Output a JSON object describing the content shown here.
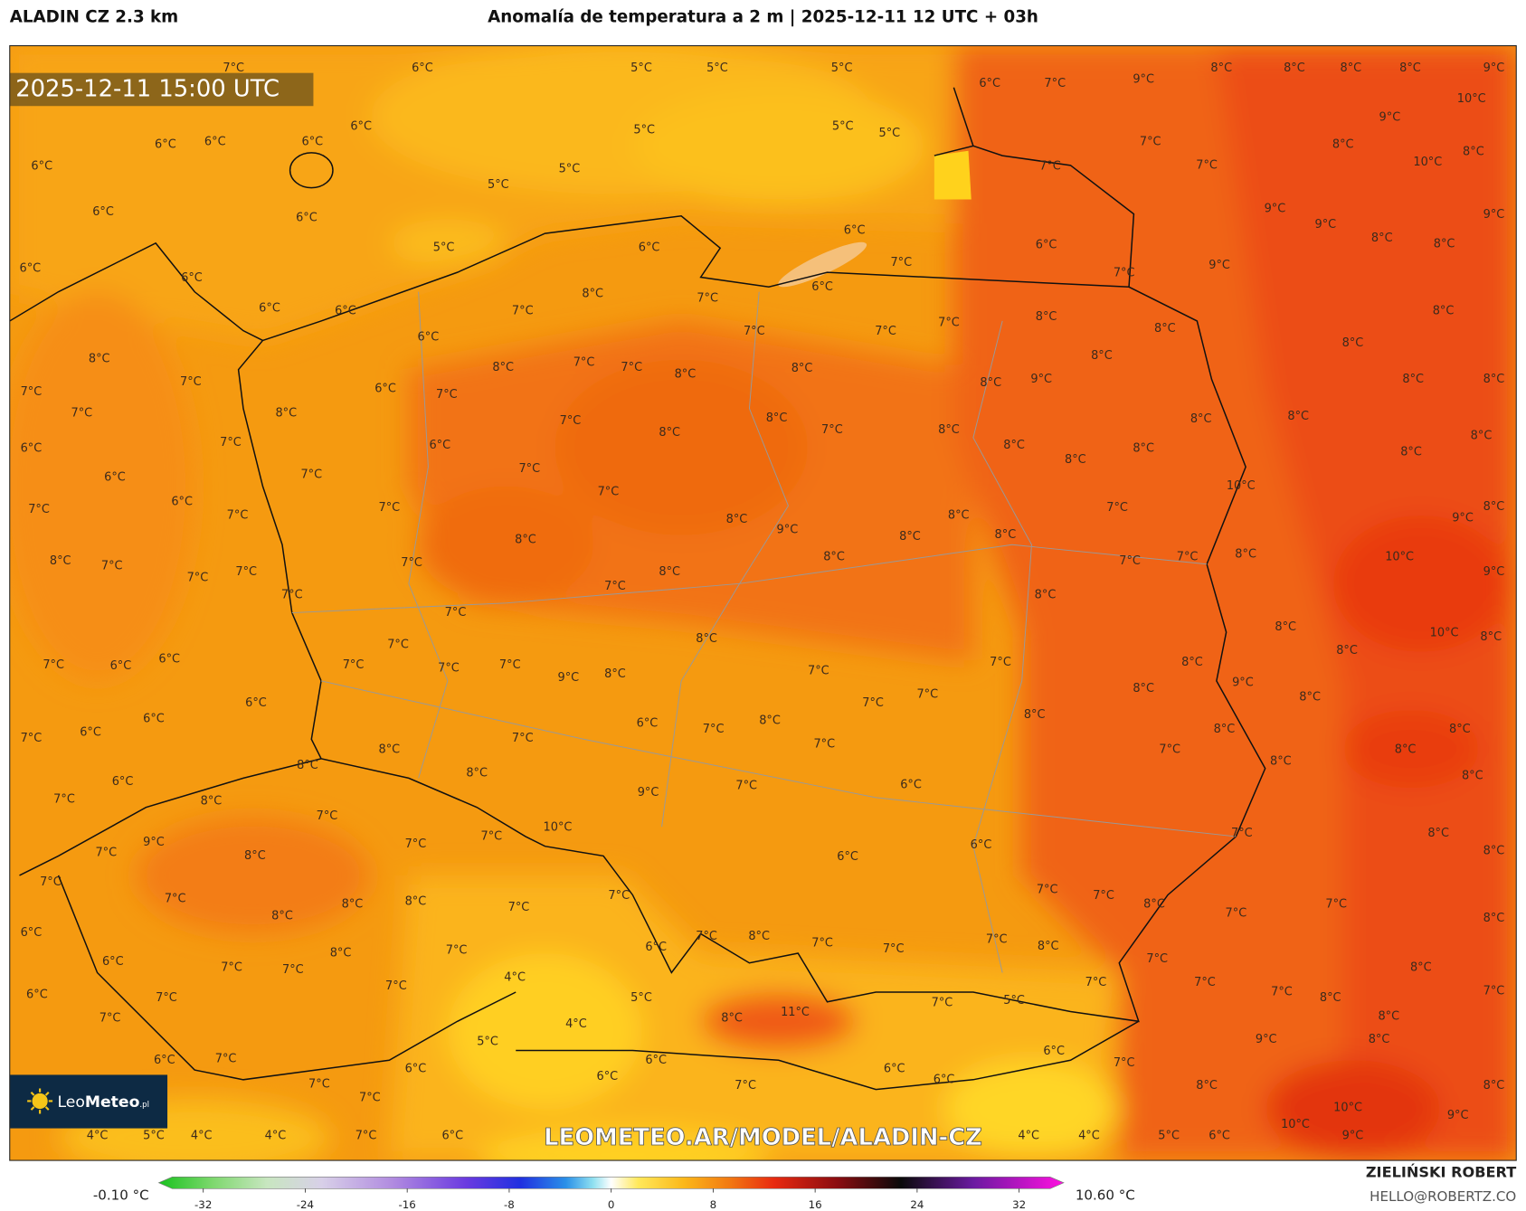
{
  "header": {
    "model": "ALADIN CZ 2.3 km",
    "title": "Anomalía de temperatura a 2 m | 2025-12-11 12 UTC + 03h"
  },
  "map": {
    "timestamp": "2025-12-11 15:00 UTC",
    "watermark": "LEOMETEO.AR/MODEL/ALADIN-CZ",
    "logo_a": "Leo",
    "logo_b": "Meteo",
    "logo_c": ".pl",
    "labels": [
      "7°C",
      "6°C",
      "5°C",
      "5°C",
      "5°C",
      "6°C",
      "7°C",
      "9°C",
      "8°C",
      "8°C",
      "8°C",
      "8°C",
      "9°C",
      "10°C",
      "6°C",
      "5°C",
      "5°C",
      "5°C",
      "9°C",
      "6°C",
      "6°C",
      "6°C",
      "7°C",
      "8°C",
      "8°C",
      "6°C",
      "5°C",
      "7°C",
      "7°C",
      "10°C",
      "5°C",
      "6°C",
      "6°C",
      "9°C",
      "9°C",
      "9°C",
      "6°C",
      "8°C",
      "8°C",
      "5°C",
      "6°C",
      "6°C",
      "6°C",
      "7°C",
      "9°C",
      "7°C",
      "6°C",
      "6°C",
      "8°C",
      "7°C",
      "6°C",
      "6°C",
      "7°C",
      "8°C",
      "7°C",
      "8°C",
      "7°C",
      "7°C",
      "8°C",
      "6°C",
      "8°C",
      "8°C",
      "8°C",
      "7°C",
      "7°C",
      "8°C",
      "8°C",
      "8°C",
      "9°C",
      "8°C",
      "7°C",
      "8°C",
      "8°C",
      "7°C",
      "6°C",
      "7°C",
      "7°C",
      "8°C",
      "7°C",
      "8°C",
      "8°C",
      "8°C",
      "8°C",
      "7°C",
      "8°C",
      "8°C",
      "7°C",
      "6°C",
      "8°C",
      "8°C",
      "8°C",
      "6°C",
      "8°C",
      "7°C",
      "7°C",
      "6°C",
      "10°C",
      "7°C",
      "6°C",
      "7°C",
      "7°C",
      "8°C",
      "7°C",
      "7°C",
      "8°C",
      "8°C",
      "9°C",
      "9°C",
      "8°C",
      "8°C",
      "8°C",
      "8°C",
      "10°C",
      "8°C",
      "7°C",
      "7°C",
      "8°C",
      "7°C",
      "7°C",
      "7°C",
      "7°C",
      "8°C",
      "9°C",
      "7°C",
      "7°C",
      "8°C",
      "7°C",
      "8°C",
      "10°C",
      "8°C",
      "8°C",
      "7°C",
      "8°C",
      "7°C",
      "8°C",
      "7°C",
      "6°C",
      "6°C",
      "7°C",
      "7°C",
      "7°C",
      "9°C",
      "8°C",
      "7°C",
      "9°C",
      "8°C",
      "8°C",
      "7°C",
      "6°C",
      "7°C",
      "8°C",
      "6°C",
      "6°C",
      "7°C",
      "8°C",
      "8°C",
      "8°C",
      "6°C",
      "7°C",
      "7°C",
      "7°C",
      "7°C",
      "8°C",
      "8°C",
      "8°C",
      "8°C",
      "8°C",
      "8°C",
      "6°C",
      "6°C",
      "7°C",
      "9°C",
      "8°C",
      "7°C",
      "7°C",
      "10°C",
      "7°C",
      "8°C",
      "9°C",
      "7°C",
      "6°C",
      "7°C",
      "8°C",
      "7°C",
      "6°C",
      "8°C",
      "7°C",
      "7°C",
      "7°C",
      "7°C",
      "8°C",
      "7°C",
      "8°C",
      "8°C",
      "7°C",
      "7°C",
      "7°C",
      "8°C",
      "8°C",
      "6°C",
      "7°C",
      "8°C",
      "7°C",
      "6°C",
      "7°C",
      "7°C",
      "8°C",
      "7°C",
      "8°C",
      "6°C",
      "7°C",
      "8°C",
      "7°C",
      "7°C",
      "4°C",
      "7°C",
      "7°C",
      "7°C",
      "7°C",
      "7°C",
      "6°C",
      "7°C",
      "5°C",
      "7°C",
      "5°C",
      "8°C",
      "11°C",
      "8°C",
      "7°C",
      "8°C",
      "4°C",
      "5°C",
      "9°C",
      "8°C",
      "6°C",
      "6°C",
      "7°C",
      "6°C",
      "7°C",
      "6°C",
      "6°C",
      "6°C",
      "6°C",
      "7°C",
      "7°C",
      "8°C",
      "8°C",
      "7°C",
      "10°C",
      "9°C",
      "10°C",
      "4°C",
      "5°C",
      "4°C",
      "4°C",
      "7°C",
      "6°C",
      "4°C",
      "4°C",
      "5°C",
      "6°C",
      "9°C"
    ]
  },
  "colorbar": {
    "lim": [
      -35.5,
      35.5
    ],
    "ticks": [
      -32,
      -24,
      -16,
      -8,
      0,
      8,
      16,
      24,
      32
    ],
    "min_label": "-0.10 °C",
    "max_label": "10.60 °C"
  },
  "footer": {
    "author": "ZIELIŃSKI ROBERT",
    "email": "HELLO@ROBERTZ.CO"
  }
}
